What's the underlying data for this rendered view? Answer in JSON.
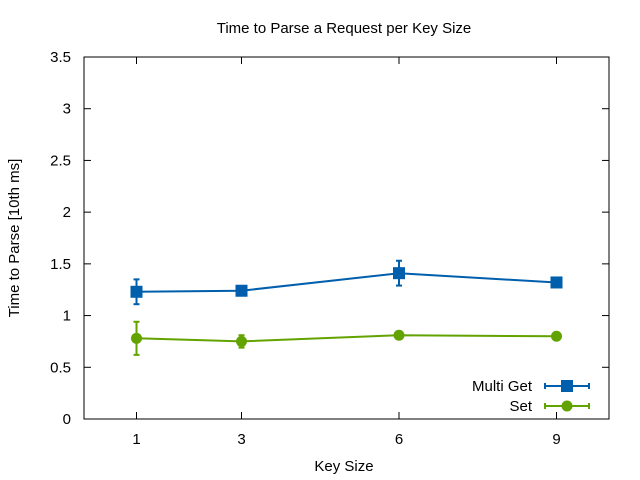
{
  "chart_data": {
    "type": "line",
    "title": "Time to Parse a Request per Key Size",
    "xlabel": "Key Size",
    "ylabel": "Time to Parse [10th ms]",
    "x": [
      1,
      3,
      6,
      9
    ],
    "x_tick_labels": [
      "1",
      "3",
      "6",
      "9"
    ],
    "xlim": [
      0,
      10
    ],
    "ylim": [
      0,
      3.5
    ],
    "y_ticks": [
      0,
      0.5,
      1,
      1.5,
      2,
      2.5,
      3,
      3.5
    ],
    "y_tick_labels": [
      "0",
      "0.5",
      "1",
      "1.5",
      "2",
      "2.5",
      "3",
      "3.5"
    ],
    "grid": false,
    "legend_position": "bottom-right",
    "error_bars": true,
    "series": [
      {
        "name": "Multi Get",
        "color": "#005fad",
        "marker": "square",
        "values": [
          1.23,
          1.24,
          1.41,
          1.32
        ],
        "err_low": [
          1.11,
          1.22,
          1.29,
          1.3
        ],
        "err_high": [
          1.35,
          1.26,
          1.53,
          1.34
        ]
      },
      {
        "name": "Set",
        "color": "#62a300",
        "marker": "circle",
        "values": [
          0.78,
          0.75,
          0.81,
          0.8
        ],
        "err_low": [
          0.62,
          0.69,
          0.79,
          0.78
        ],
        "err_high": [
          0.94,
          0.81,
          0.83,
          0.82
        ]
      }
    ]
  }
}
